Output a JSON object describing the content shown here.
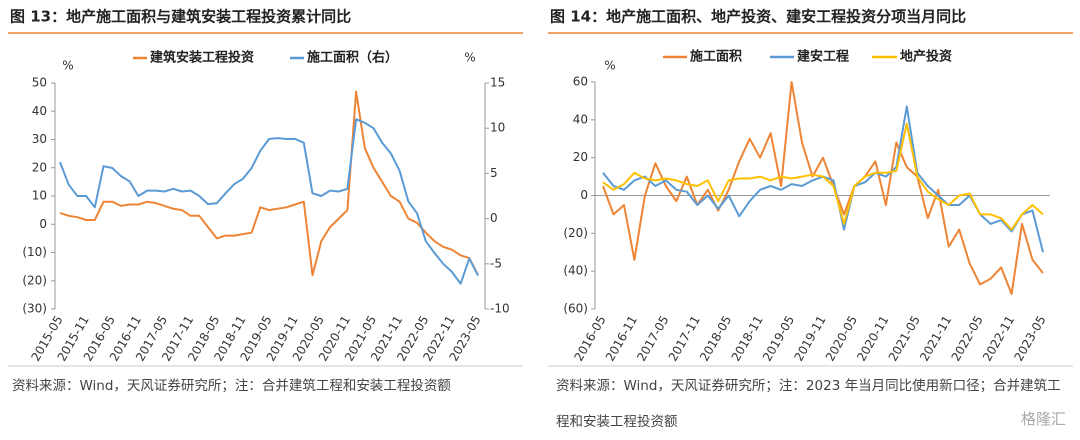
{
  "chart_data": [
    {
      "type": "line",
      "title": "图 13：地产施工面积与建筑安装工程投资累计同比",
      "source": "资料来源：Wind，天风证券研究所；注：合并建筑工程和安装工程投资额",
      "y_unit": "%",
      "y2_unit": "%",
      "categories": [
        "2015-05",
        null,
        null,
        "2015-11",
        null,
        null,
        "2016-05",
        null,
        null,
        "2016-11",
        null,
        null,
        "2017-05",
        null,
        null,
        "2017-11",
        null,
        null,
        "2018-05",
        null,
        null,
        "2018-11",
        null,
        null,
        "2019-05",
        null,
        null,
        "2019-11",
        null,
        null,
        "2020-05",
        null,
        null,
        "2020-11",
        null,
        null,
        "2021-05",
        null,
        null,
        "2021-11",
        null,
        null,
        "2022-05",
        null,
        null,
        "2022-11",
        null,
        null,
        "2023-05"
      ],
      "ylim": [
        -30,
        50
      ],
      "yticks": [
        {
          "value": -30,
          "label": "(30)"
        },
        {
          "value": -20,
          "label": "(20)"
        },
        {
          "value": -10,
          "label": "(10)"
        },
        0,
        10,
        20,
        30,
        40,
        50
      ],
      "y2lim": [
        -10,
        15
      ],
      "y2ticks": [
        -10,
        -5,
        0,
        5,
        10,
        15
      ],
      "series": [
        {
          "name": "建筑安装工程投资",
          "color": "#ee8435",
          "values": [
            4,
            3,
            2.5,
            1.5,
            1.5,
            8,
            8,
            6.5,
            7,
            7,
            8,
            7.5,
            6.5,
            5.5,
            5,
            3,
            3,
            -1,
            -5,
            -4,
            -4,
            -3.5,
            -3,
            6,
            5,
            5.5,
            6,
            7,
            8,
            -18,
            -6,
            -1,
            2,
            5,
            47,
            27,
            20,
            15,
            10,
            8,
            2,
            0.5,
            -3,
            -6,
            -8,
            -9,
            -11,
            -12,
            -18
          ]
        },
        {
          "name": "施工面积（右）",
          "color": "#5b9bd5",
          "axis": "y2",
          "values": [
            6.25,
            3.75,
            2.5,
            2.5,
            1.25,
            5.8,
            5.6,
            4.7,
            4.1,
            2.5,
            3.1,
            3.1,
            3,
            3.3,
            3,
            3.1,
            2.5,
            1.6,
            1.7,
            2.8,
            3.8,
            4.4,
            5.6,
            7.5,
            8.8,
            8.9,
            8.8,
            8.8,
            8.4,
            2.8,
            2.5,
            3.1,
            3,
            3.3,
            11,
            10.6,
            10,
            8.4,
            7.2,
            5.3,
            1.9,
            0.6,
            -2.5,
            -3.8,
            -5,
            -5.9,
            -7.2,
            -4.4,
            -6.3
          ]
        }
      ]
    },
    {
      "type": "line",
      "title": "图 14：地产施工面积、地产投资、建安工程投资分项当月同比",
      "source": "资料来源：Wind，天风证券研究所；注：2023 年当月同比使用新口径；合并建筑工程和安装工程投资额",
      "y_unit": "%",
      "categories": [
        "2016-05",
        null,
        null,
        "2016-11",
        null,
        null,
        "2017-05",
        null,
        null,
        "2017-11",
        null,
        null,
        "2018-05",
        null,
        null,
        "2018-11",
        null,
        null,
        "2019-05",
        null,
        null,
        "2019-11",
        null,
        null,
        "2020-05",
        null,
        null,
        "2020-11",
        null,
        null,
        "2021-05",
        null,
        null,
        "2021-11",
        null,
        null,
        "2022-05",
        null,
        null,
        "2022-11",
        null,
        null,
        "2023-05"
      ],
      "ylim": [
        -60,
        60
      ],
      "yticks": [
        {
          "value": -60,
          "label": "(60)"
        },
        {
          "value": -40,
          "label": "(40)"
        },
        {
          "value": -20,
          "label": "(20)"
        },
        0,
        20,
        40,
        60
      ],
      "series": [
        {
          "name": "施工面积",
          "color": "#ee8435",
          "values": [
            5,
            -10,
            -5,
            -34,
            0,
            17,
            5,
            -3,
            10,
            -5,
            3,
            -8,
            3,
            18,
            30,
            20,
            33,
            5,
            60,
            28,
            10,
            20,
            5,
            -10,
            5,
            10,
            18,
            -5,
            28,
            15,
            10,
            -12,
            3,
            -27,
            -18,
            -36,
            -47,
            -44,
            -38,
            -52,
            -15,
            -34,
            -41
          ]
        },
        {
          "name": "建安工程",
          "color": "#5b9bd5",
          "values": [
            12,
            5,
            3,
            8,
            10,
            5,
            8,
            3,
            2,
            -5,
            0,
            -7,
            0,
            -11,
            -3,
            3,
            5,
            3,
            6,
            5,
            8,
            10,
            8,
            -18,
            5,
            7,
            12,
            10,
            15,
            47,
            12,
            5,
            0,
            -5,
            -5,
            0,
            -10,
            -15,
            -13,
            -19,
            -10,
            -8,
            -30
          ]
        },
        {
          "name": "地产投资",
          "color": "#ffc000",
          "values": [
            7,
            3,
            6,
            12,
            9,
            8,
            9,
            8,
            6,
            5,
            8,
            -3,
            8,
            9,
            9,
            10,
            8,
            10,
            9,
            10,
            11,
            10,
            5,
            -15,
            5,
            10,
            12,
            12,
            13,
            38,
            10,
            2,
            -2,
            -5,
            0,
            1,
            -10,
            -10,
            -12,
            -18,
            -10,
            -5,
            -10
          ]
        }
      ]
    }
  ],
  "watermark": "格隆汇"
}
